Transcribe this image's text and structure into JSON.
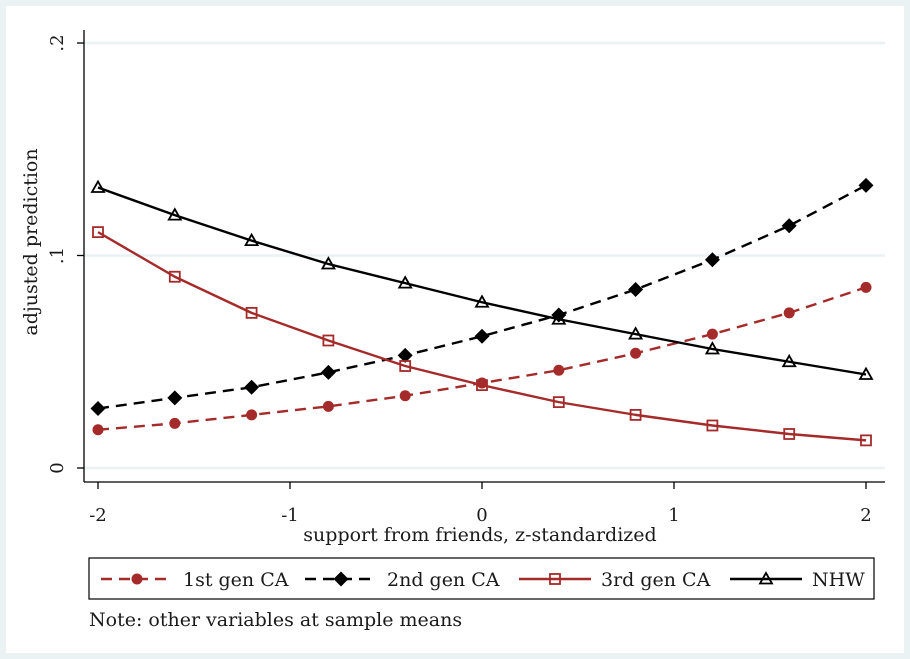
{
  "chart_data": {
    "type": "line",
    "title": "",
    "xlabel": "support from friends, z-standardized",
    "ylabel": "adjusted prediction",
    "xlim": [
      -2,
      2
    ],
    "ylim": [
      0,
      0.2
    ],
    "x_ticks": [
      -2,
      -1,
      0,
      1,
      2
    ],
    "x_tick_labels": [
      "-2",
      "-1",
      "0",
      "1",
      "2"
    ],
    "y_ticks": [
      0,
      0.1,
      0.2
    ],
    "y_tick_labels": [
      "0",
      ".1",
      ".2"
    ],
    "grid": true,
    "x": [
      -2,
      -1.6,
      -1.2,
      -0.8,
      -0.4,
      0,
      0.4,
      0.8,
      1.2,
      1.6,
      2
    ],
    "series": [
      {
        "name": "1st gen CA",
        "color": "#a52a2a",
        "dash": "dashed",
        "marker": "circle",
        "values": [
          0.018,
          0.021,
          0.025,
          0.029,
          0.034,
          0.04,
          0.046,
          0.054,
          0.063,
          0.073,
          0.085
        ]
      },
      {
        "name": "2nd gen CA",
        "color": "#000000",
        "dash": "dashed",
        "marker": "diamond",
        "values": [
          0.028,
          0.033,
          0.038,
          0.045,
          0.053,
          0.062,
          0.072,
          0.084,
          0.098,
          0.114,
          0.133
        ]
      },
      {
        "name": "3rd gen CA",
        "color": "#a52a2a",
        "dash": "solid",
        "marker": "square",
        "values": [
          0.111,
          0.09,
          0.073,
          0.06,
          0.048,
          0.039,
          0.031,
          0.025,
          0.02,
          0.016,
          0.013
        ]
      },
      {
        "name": "NHW",
        "color": "#000000",
        "dash": "solid",
        "marker": "triangle",
        "values": [
          0.132,
          0.119,
          0.107,
          0.096,
          0.087,
          0.078,
          0.07,
          0.063,
          0.056,
          0.05,
          0.044
        ]
      }
    ],
    "legend_position": "bottom",
    "note": "Note: other variables at sample means"
  }
}
